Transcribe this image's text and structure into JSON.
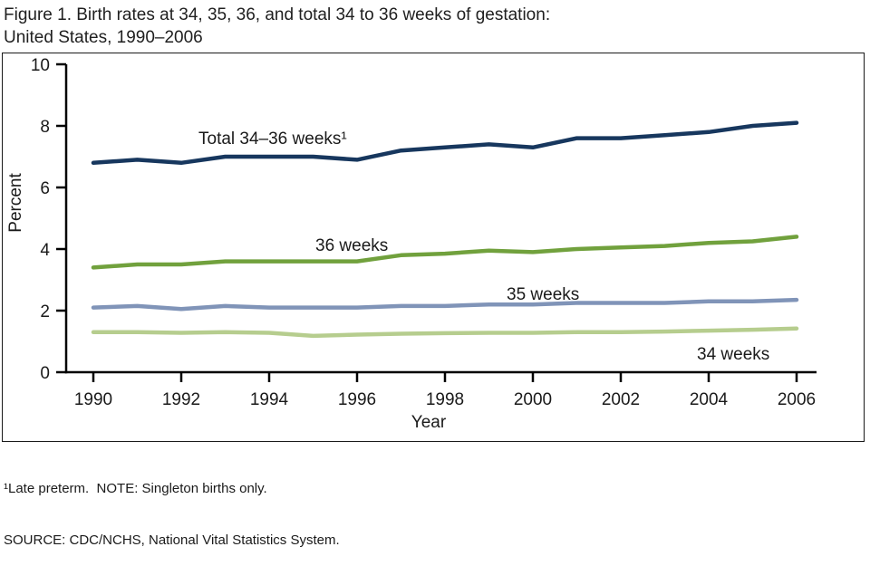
{
  "title": {
    "line1": "Figure 1. Birth rates at 34, 35, 36, and total 34 to 36 weeks of gestation:",
    "line2": "United States, 1990–2006"
  },
  "footnotes": {
    "line1": "¹Late preterm.  NOTE: Singleton births only.",
    "line2": "SOURCE: CDC/NCHS, National Vital Statistics System."
  },
  "chart_data": {
    "type": "line",
    "title": "Birth rates at 34, 35, 36, and total 34 to 36 weeks of gestation: United States, 1990–2006",
    "xlabel": "Year",
    "ylabel": "Percent",
    "x": [
      1990,
      1991,
      1992,
      1993,
      1994,
      1995,
      1996,
      1997,
      1998,
      1999,
      2000,
      2001,
      2002,
      2003,
      2004,
      2005,
      2006
    ],
    "x_ticks": [
      1990,
      1992,
      1994,
      1996,
      1998,
      2000,
      2002,
      2004,
      2006
    ],
    "ylim": [
      0,
      10
    ],
    "y_ticks": [
      0,
      2,
      4,
      6,
      8,
      10
    ],
    "grid": false,
    "legend_position": "inline-labels",
    "series": [
      {
        "name": "Total 34–36 weeks¹",
        "color": "#17375e",
        "values": [
          6.8,
          6.9,
          6.8,
          7.0,
          7.0,
          7.0,
          6.9,
          7.2,
          7.3,
          7.4,
          7.3,
          7.6,
          7.6,
          7.7,
          7.8,
          8.0,
          8.1
        ]
      },
      {
        "name": "36 weeks",
        "color": "#71a13d",
        "values": [
          3.4,
          3.5,
          3.5,
          3.6,
          3.6,
          3.6,
          3.6,
          3.8,
          3.85,
          3.95,
          3.9,
          4.0,
          4.05,
          4.1,
          4.2,
          4.25,
          4.4
        ]
      },
      {
        "name": "35 weeks",
        "color": "#8094b8",
        "values": [
          2.1,
          2.15,
          2.05,
          2.15,
          2.1,
          2.1,
          2.1,
          2.15,
          2.15,
          2.2,
          2.2,
          2.25,
          2.25,
          2.25,
          2.3,
          2.3,
          2.35
        ]
      },
      {
        "name": "34 weeks",
        "color": "#b6cd8e",
        "values": [
          1.3,
          1.3,
          1.28,
          1.3,
          1.28,
          1.18,
          1.22,
          1.25,
          1.27,
          1.28,
          1.28,
          1.3,
          1.3,
          1.32,
          1.35,
          1.38,
          1.42
        ]
      }
    ]
  }
}
